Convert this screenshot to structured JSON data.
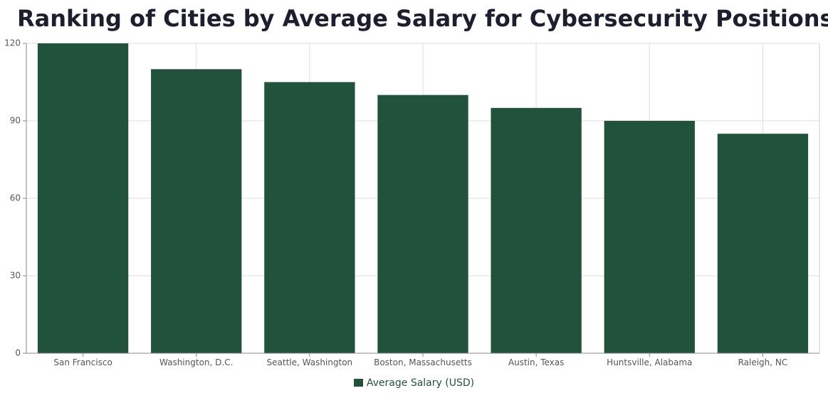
{
  "chart_data": {
    "type": "bar",
    "title": "Ranking of Cities by Average Salary for Cybersecurity Positions",
    "categories": [
      "San Francisco",
      "Washington, D.C.",
      "Seattle, Washington",
      "Boston, Massachusetts",
      "Austin, Texas",
      "Huntsville, Alabama",
      "Raleigh, NC"
    ],
    "series": [
      {
        "name": "Average Salary (USD)",
        "values": [
          120,
          110,
          105,
          100,
          95,
          90,
          85
        ],
        "color": "#21533c"
      }
    ],
    "xlabel": "",
    "ylabel": "",
    "ylim": [
      0,
      120
    ],
    "yticks": [
      0,
      30,
      60,
      90,
      120
    ],
    "grid": true,
    "legend_position": "bottom-center"
  }
}
